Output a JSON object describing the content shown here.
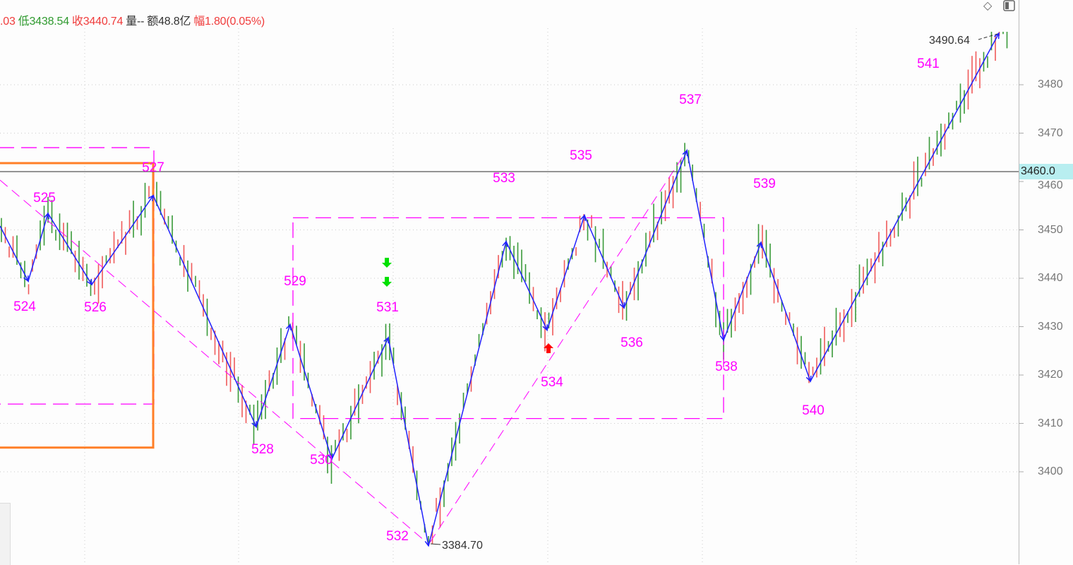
{
  "header": {
    "open_fragment": ".03",
    "low_label": "低",
    "low_value": "3438.54",
    "close_label": "收",
    "close_value": "3440.74",
    "volume_label": "量",
    "volume_value": "--",
    "amount_label": "额",
    "amount_value": "48.8亿",
    "change_label": "幅",
    "change_value": "1.80(0.05%)"
  },
  "toolbar": {
    "diamond_icon": "diamond-icon",
    "panel_icon": "panel-toggle-icon"
  },
  "chart_data": {
    "type": "line",
    "title": "",
    "xlabel": "",
    "ylabel": "",
    "ylim": [
      3380,
      3495
    ],
    "y_ticks": [
      "3400",
      "3410",
      "3420",
      "3430",
      "3440",
      "3450",
      "3460",
      "3470",
      "3480"
    ],
    "grid": true,
    "current_price_line": {
      "value": 3460.0,
      "label": "3460.0"
    },
    "zigzag_pivots": [
      {
        "wave": "524",
        "price": 3439.4
      },
      {
        "wave": "525",
        "price": 3453.4
      },
      {
        "wave": "526",
        "price": 3438.7
      },
      {
        "wave": "527",
        "price": 3457.1
      },
      {
        "wave": "528",
        "price": 3409.3
      },
      {
        "wave": "529",
        "price": 3430.4
      },
      {
        "wave": "530",
        "price": 3402.6
      },
      {
        "wave": "531",
        "price": 3427.7
      },
      {
        "wave": "532",
        "price": 3384.7
      },
      {
        "wave": "533",
        "price": 3447.6
      },
      {
        "wave": "534",
        "price": 3429.3
      },
      {
        "wave": "535",
        "price": 3453.0
      },
      {
        "wave": "536",
        "price": 3433.9
      },
      {
        "wave": "537",
        "price": 3466.4
      },
      {
        "wave": "538",
        "price": 3427.2
      },
      {
        "wave": "539",
        "price": 3447.4
      },
      {
        "wave": "540",
        "price": 3418.7
      },
      {
        "wave": "541",
        "price": 3490.64
      }
    ],
    "annotations": {
      "low_label": "3384.70",
      "high_label": "3490.64"
    },
    "boxes": [
      {
        "style": "magenta-dashed",
        "top_price": 3467.0,
        "bottom_price": 3414.0
      },
      {
        "style": "orange-solid",
        "top_price": 3463.8,
        "bottom_price": 3405.0
      },
      {
        "style": "magenta-dashed",
        "top_price": 3452.5,
        "bottom_price": 3411.0
      }
    ],
    "signals": [
      {
        "type": "sell-arrow",
        "color": "#00e000",
        "count": 2
      },
      {
        "type": "buy-arrow",
        "color": "#ff0000",
        "count": 1
      }
    ],
    "colors": {
      "up": "#f05a5a",
      "down": "#3a9a3a",
      "zigzag": "#2020ff",
      "wave_label": "#ff00ff",
      "box_orange": "#ff7f27"
    }
  }
}
